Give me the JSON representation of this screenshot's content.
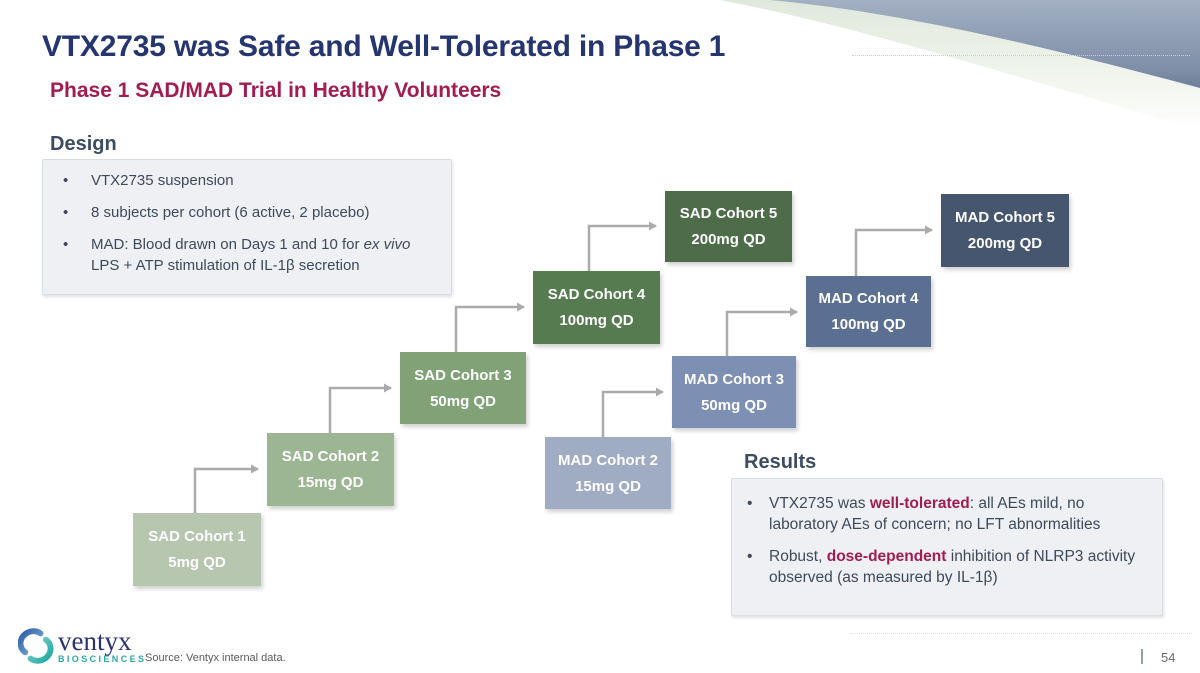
{
  "slide": {
    "title": "VTX2735 was Safe and Well-Tolerated in Phase 1",
    "subtitle": "Phase 1 SAD/MAD Trial in Healthy Volunteers",
    "colors": {
      "title": "#24356F",
      "subtitle": "#A21C51",
      "heading": "#3C4D63",
      "body": "#3E4A5A",
      "accent": "#A21C51",
      "connector": "#ABABAB"
    }
  },
  "design": {
    "heading": "Design",
    "bullets": [
      {
        "segments": [
          {
            "text": "VTX2735 suspension"
          }
        ]
      },
      {
        "segments": [
          {
            "text": "8 subjects per cohort (6 active, 2 placebo)"
          }
        ]
      },
      {
        "segments": [
          {
            "text": "MAD: Blood drawn on Days 1 and 10 for "
          },
          {
            "text": "ex vivo",
            "italic": true
          },
          {
            "text": " LPS + ATP stimulation of IL-1β secretion"
          }
        ]
      }
    ]
  },
  "results": {
    "heading": "Results",
    "bullets": [
      {
        "segments": [
          {
            "text": "VTX2735 was "
          },
          {
            "text": "well-tolerated",
            "bold": true,
            "accent": true
          },
          {
            "text": ": all AEs mild, no laboratory AEs of concern; no LFT abnormalities"
          }
        ]
      },
      {
        "segments": [
          {
            "text": "Robust, "
          },
          {
            "text": "dose-dependent",
            "bold": true,
            "accent": true
          },
          {
            "text": " inhibition of NLRP3 activity observed (as measured by IL-1β)"
          }
        ]
      }
    ]
  },
  "cohorts": [
    {
      "name": "SAD Cohort 1",
      "dose": "5mg QD",
      "color": "#B6C6AF"
    },
    {
      "name": "SAD Cohort 2",
      "dose": "15mg QD",
      "color": "#9CB694"
    },
    {
      "name": "SAD Cohort 3",
      "dose": "50mg QD",
      "color": "#81A276"
    },
    {
      "name": "SAD Cohort 4",
      "dose": "100mg QD",
      "color": "#567B50"
    },
    {
      "name": "SAD Cohort 5",
      "dose": "200mg QD",
      "color": "#4E6C49"
    },
    {
      "name": "MAD Cohort 2",
      "dose": "15mg QD",
      "color": "#9FACC4"
    },
    {
      "name": "MAD Cohort 3",
      "dose": "50mg QD",
      "color": "#7D8FB2"
    },
    {
      "name": "MAD Cohort 4",
      "dose": "100mg QD",
      "color": "#5B6F92"
    },
    {
      "name": "MAD Cohort 5",
      "dose": "200mg QD",
      "color": "#45566E"
    }
  ],
  "footer": {
    "brand": "ventyx",
    "brand_sub": "BIOSCIENCES",
    "source": "Source: Ventyx internal data.",
    "page_number": "54"
  }
}
